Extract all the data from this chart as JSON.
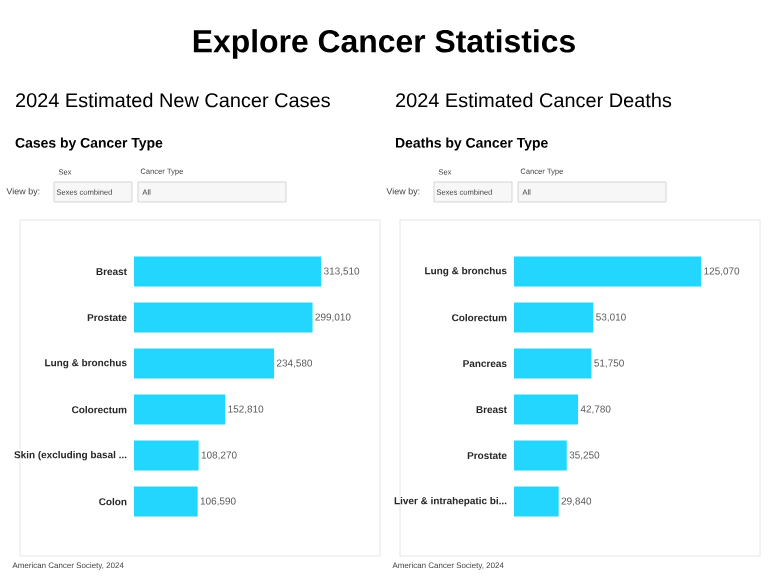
{
  "chart_data": [
    {
      "type": "other",
      "title": "Explore Cancer Statistics"
    },
    {
      "type": "bar",
      "orientation": "horizontal",
      "title": "2024 Estimated New Cancer Cases",
      "subtitle": "Cases by Cancer Type",
      "color": "#22d6fd",
      "categories": [
        "Breast",
        "Prostate",
        "Lung & bronchus",
        "Colorectum",
        "Skin (excluding basal ...",
        "Colon"
      ],
      "values": [
        313510,
        299010,
        234580,
        152810,
        108270,
        106590
      ],
      "value_labels": [
        "313,510",
        "299,010",
        "234,580",
        "152,810",
        "108,270",
        "106,590"
      ],
      "annotations": [
        "View by:",
        "Sex",
        "Sexes combined",
        "Cancer Type",
        "All",
        "American Cancer Society, 2024"
      ]
    },
    {
      "type": "bar",
      "orientation": "horizontal",
      "title": "2024 Estimated Cancer Deaths",
      "subtitle": "Deaths by Cancer Type",
      "color": "#22d6fd",
      "categories": [
        "Lung & bronchus",
        "Colorectum",
        "Pancreas",
        "Breast",
        "Prostate",
        "Liver & intrahepatic bi..."
      ],
      "values": [
        125070,
        53010,
        51750,
        42780,
        35250,
        29840
      ],
      "value_labels": [
        "125,070",
        "53,010",
        "51,750",
        "42,780",
        "35,250",
        "29,840"
      ],
      "annotations": [
        "View by:",
        "Sex",
        "Sexes combined",
        "Cancer Type",
        "All",
        "American Cancer Society, 2024"
      ]
    }
  ]
}
